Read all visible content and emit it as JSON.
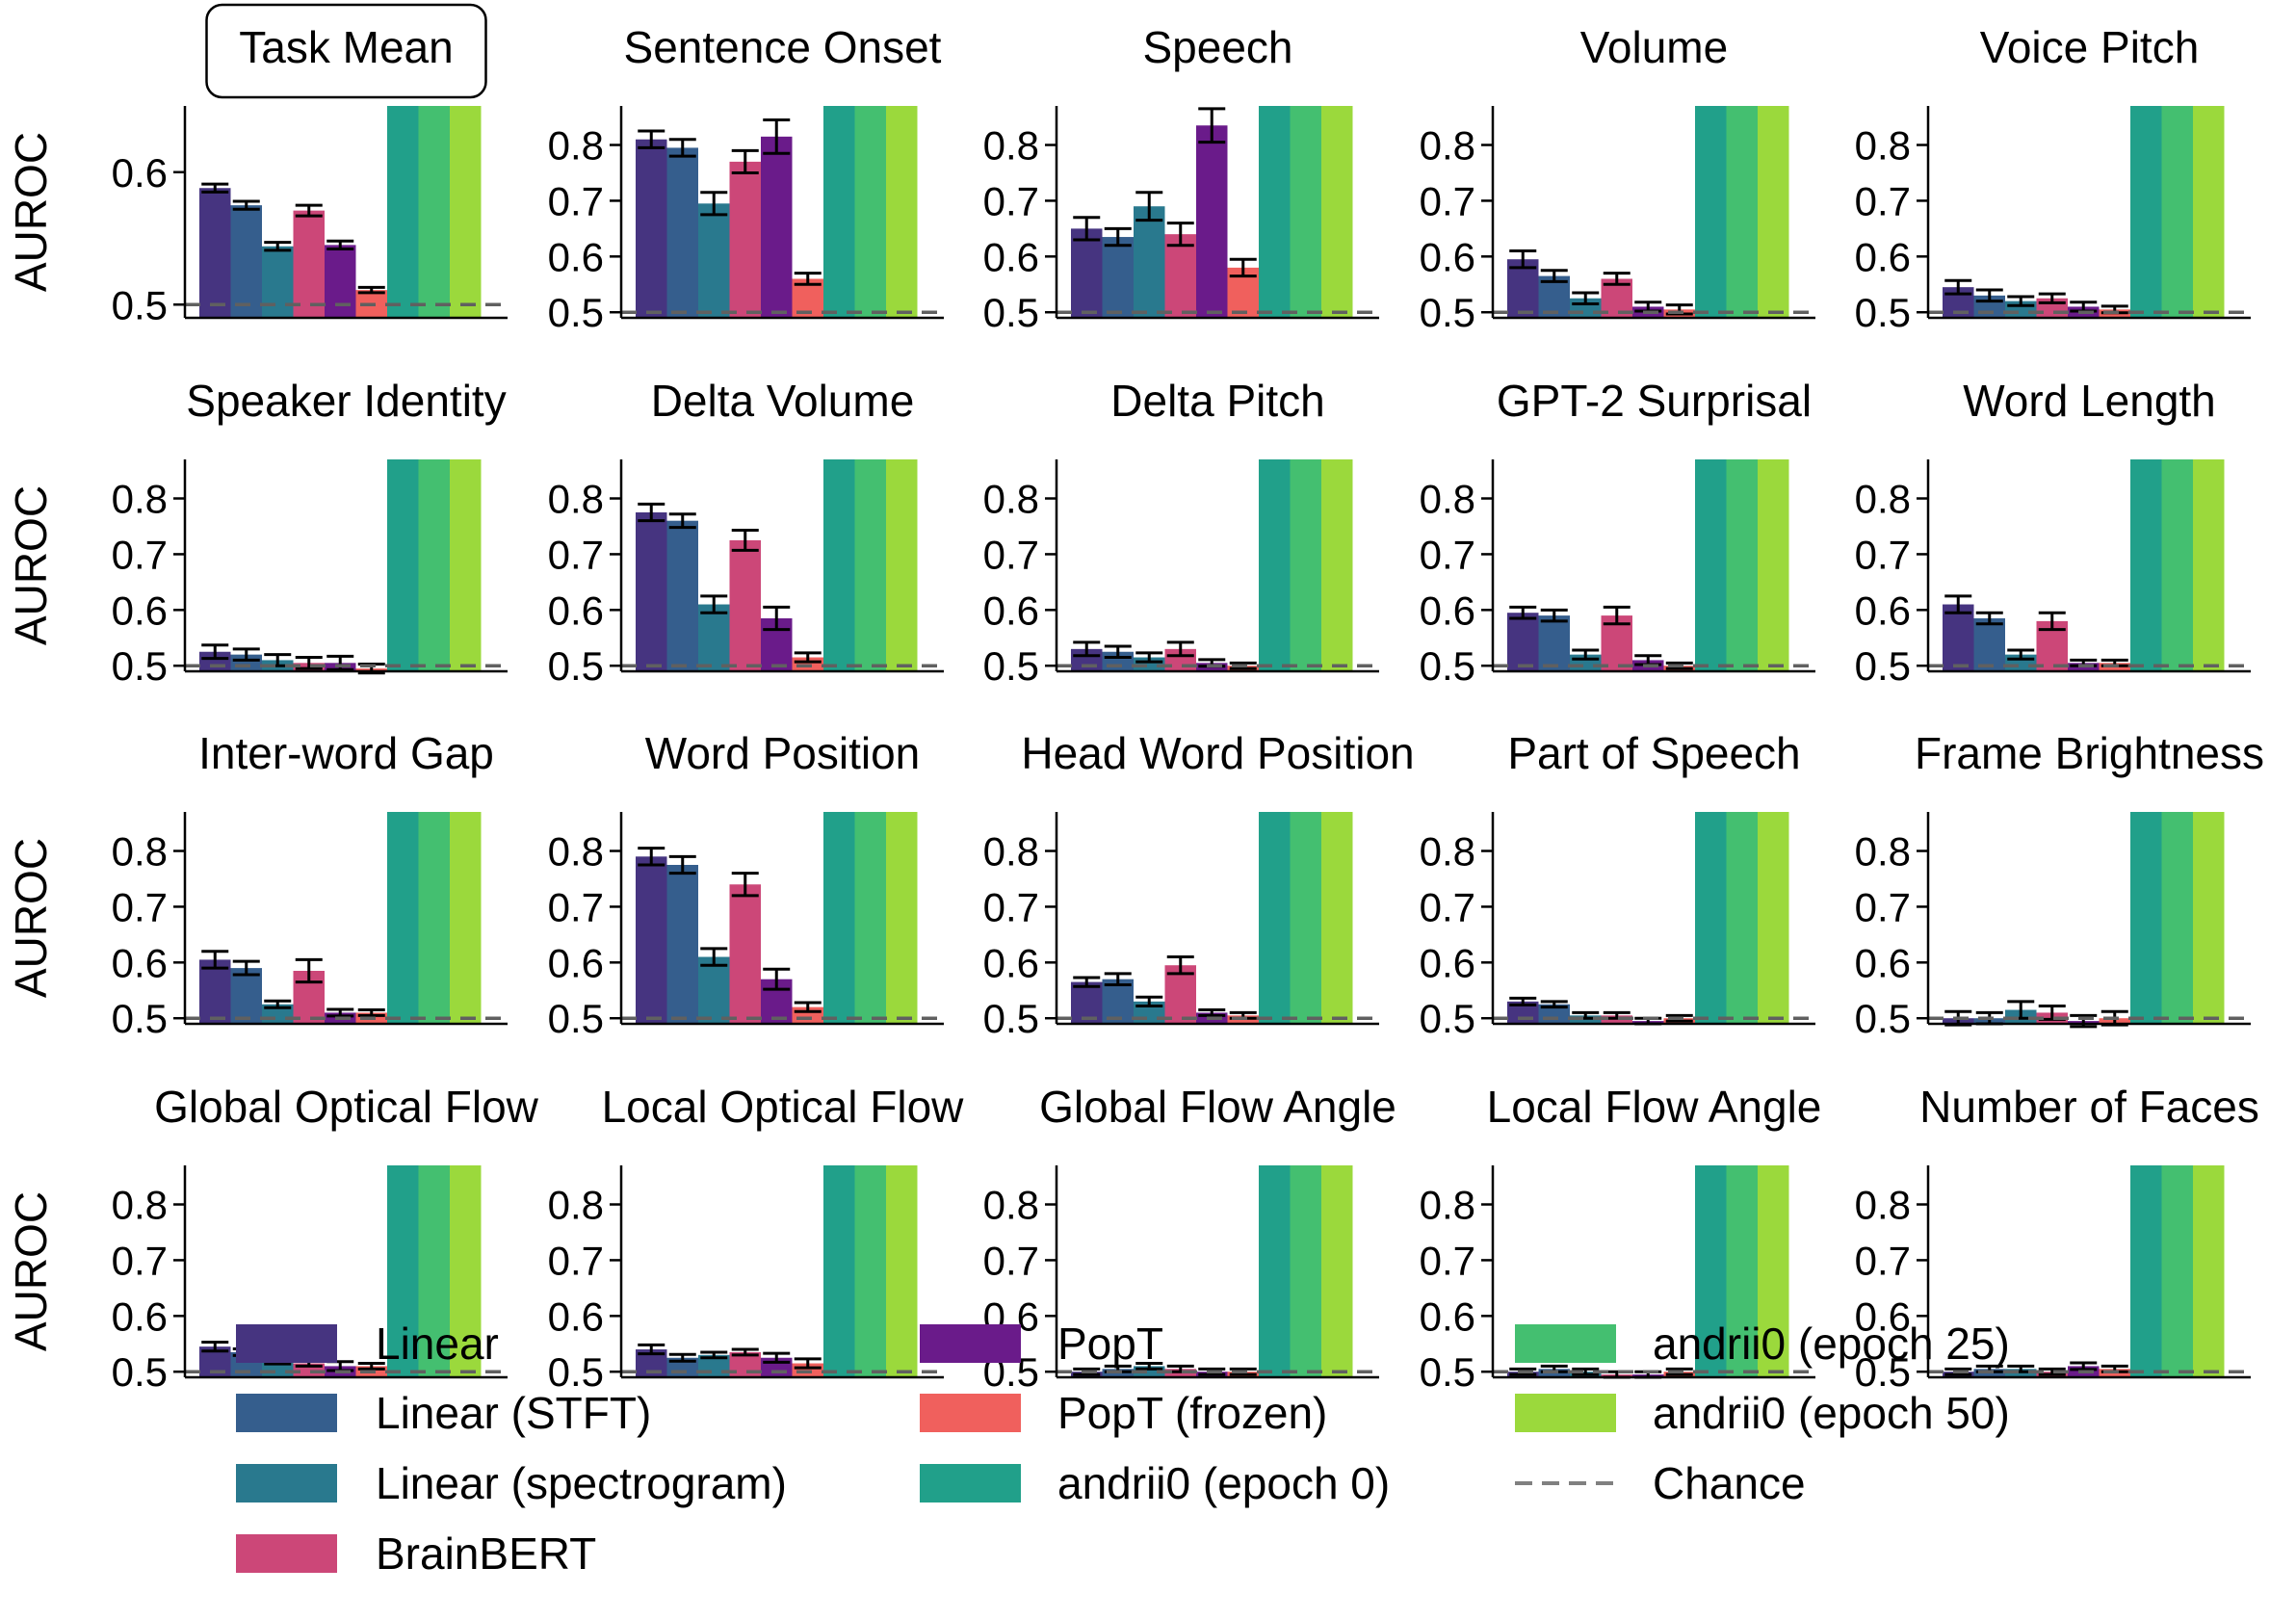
{
  "figure": {
    "ylabel": "AUROC",
    "chance_value": 0.5,
    "highlighted_panel": "Task Mean"
  },
  "legend": {
    "items": [
      {
        "label": "Linear",
        "color": "#463480",
        "kind": "box"
      },
      {
        "label": "Linear (STFT)",
        "color": "#355e8d",
        "kind": "box"
      },
      {
        "label": "Linear (spectrogram)",
        "color": "#29798e",
        "kind": "box"
      },
      {
        "label": "BrainBERT",
        "color": "#cc4778",
        "kind": "box"
      },
      {
        "label": "PopT",
        "color": "#6a1b8a",
        "kind": "box"
      },
      {
        "label": "PopT (frozen)",
        "color": "#f0605d",
        "kind": "box"
      },
      {
        "label": "andrii0 (epoch 0)",
        "color": "#21a08a",
        "kind": "box"
      },
      {
        "label": "andrii0 (epoch 25)",
        "color": "#44bf70",
        "kind": "box"
      },
      {
        "label": "andrii0 (epoch 50)",
        "color": "#9bd93c",
        "kind": "box"
      },
      {
        "label": "Chance",
        "color": "#808080",
        "kind": "dashed"
      }
    ]
  },
  "chart_data": [
    {
      "type": "bar",
      "title": "Task Mean",
      "ylim": [
        0.49,
        0.65
      ],
      "yticks": [
        0.5,
        0.6
      ],
      "series": [
        "Linear",
        "Linear (STFT)",
        "Linear (spectrogram)",
        "BrainBERT",
        "PopT",
        "PopT (frozen)",
        "andrii0 (epoch 0)",
        "andrii0 (epoch 25)",
        "andrii0 (epoch 50)"
      ],
      "values": [
        0.588,
        0.575,
        0.544,
        0.571,
        0.545,
        0.511,
        0.65,
        0.65,
        0.65
      ],
      "errors": [
        0.003,
        0.003,
        0.003,
        0.004,
        0.003,
        0.002,
        0,
        0,
        0
      ]
    },
    {
      "type": "bar",
      "title": "Sentence Onset",
      "ylim": [
        0.49,
        0.87
      ],
      "yticks": [
        0.5,
        0.6,
        0.7,
        0.8
      ],
      "values": [
        0.81,
        0.795,
        0.695,
        0.77,
        0.815,
        0.56,
        0.87,
        0.87,
        0.87
      ],
      "errors": [
        0.015,
        0.015,
        0.02,
        0.02,
        0.03,
        0.01,
        0,
        0,
        0
      ]
    },
    {
      "type": "bar",
      "title": "Speech",
      "ylim": [
        0.49,
        0.87
      ],
      "yticks": [
        0.5,
        0.6,
        0.7,
        0.8
      ],
      "values": [
        0.65,
        0.635,
        0.69,
        0.64,
        0.835,
        0.58,
        0.87,
        0.87,
        0.87
      ],
      "errors": [
        0.02,
        0.015,
        0.025,
        0.02,
        0.03,
        0.015,
        0,
        0,
        0
      ]
    },
    {
      "type": "bar",
      "title": "Volume",
      "ylim": [
        0.49,
        0.87
      ],
      "yticks": [
        0.5,
        0.6,
        0.7,
        0.8
      ],
      "values": [
        0.595,
        0.565,
        0.525,
        0.56,
        0.51,
        0.505,
        0.87,
        0.87,
        0.87
      ],
      "errors": [
        0.015,
        0.01,
        0.01,
        0.01,
        0.008,
        0.008,
        0,
        0,
        0
      ]
    },
    {
      "type": "bar",
      "title": "Voice Pitch",
      "ylim": [
        0.49,
        0.87
      ],
      "yticks": [
        0.5,
        0.6,
        0.7,
        0.8
      ],
      "values": [
        0.545,
        0.53,
        0.52,
        0.525,
        0.51,
        0.505,
        0.87,
        0.87,
        0.87
      ],
      "errors": [
        0.012,
        0.01,
        0.008,
        0.008,
        0.008,
        0.006,
        0,
        0,
        0
      ]
    },
    {
      "type": "bar",
      "title": "Speaker Identity",
      "ylim": [
        0.49,
        0.87
      ],
      "yticks": [
        0.5,
        0.6,
        0.7,
        0.8
      ],
      "values": [
        0.525,
        0.52,
        0.51,
        0.505,
        0.505,
        0.495,
        0.87,
        0.87,
        0.87
      ],
      "errors": [
        0.012,
        0.01,
        0.01,
        0.01,
        0.012,
        0.008,
        0,
        0,
        0
      ]
    },
    {
      "type": "bar",
      "title": "Delta Volume",
      "ylim": [
        0.49,
        0.87
      ],
      "yticks": [
        0.5,
        0.6,
        0.7,
        0.8
      ],
      "values": [
        0.775,
        0.76,
        0.61,
        0.725,
        0.585,
        0.515,
        0.87,
        0.87,
        0.87
      ],
      "errors": [
        0.015,
        0.012,
        0.015,
        0.018,
        0.02,
        0.008,
        0,
        0,
        0
      ]
    },
    {
      "type": "bar",
      "title": "Delta Pitch",
      "ylim": [
        0.49,
        0.87
      ],
      "yticks": [
        0.5,
        0.6,
        0.7,
        0.8
      ],
      "values": [
        0.53,
        0.525,
        0.515,
        0.53,
        0.505,
        0.5,
        0.87,
        0.87,
        0.87
      ],
      "errors": [
        0.012,
        0.01,
        0.008,
        0.012,
        0.006,
        0.005,
        0,
        0,
        0
      ]
    },
    {
      "type": "bar",
      "title": "GPT-2 Surprisal",
      "ylim": [
        0.49,
        0.87
      ],
      "yticks": [
        0.5,
        0.6,
        0.7,
        0.8
      ],
      "values": [
        0.595,
        0.59,
        0.52,
        0.59,
        0.51,
        0.5,
        0.87,
        0.87,
        0.87
      ],
      "errors": [
        0.01,
        0.01,
        0.008,
        0.015,
        0.008,
        0.005,
        0,
        0,
        0
      ]
    },
    {
      "type": "bar",
      "title": "Word Length",
      "ylim": [
        0.49,
        0.87
      ],
      "yticks": [
        0.5,
        0.6,
        0.7,
        0.8
      ],
      "values": [
        0.61,
        0.585,
        0.52,
        0.58,
        0.505,
        0.505,
        0.87,
        0.87,
        0.87
      ],
      "errors": [
        0.015,
        0.01,
        0.008,
        0.015,
        0.005,
        0.005,
        0,
        0,
        0
      ]
    },
    {
      "type": "bar",
      "title": "Inter-word Gap",
      "ylim": [
        0.49,
        0.87
      ],
      "yticks": [
        0.5,
        0.6,
        0.7,
        0.8
      ],
      "values": [
        0.605,
        0.59,
        0.525,
        0.585,
        0.51,
        0.51,
        0.87,
        0.87,
        0.87
      ],
      "errors": [
        0.015,
        0.012,
        0.006,
        0.02,
        0.006,
        0.005,
        0,
        0,
        0
      ]
    },
    {
      "type": "bar",
      "title": "Word Position",
      "ylim": [
        0.49,
        0.87
      ],
      "yticks": [
        0.5,
        0.6,
        0.7,
        0.8
      ],
      "values": [
        0.79,
        0.775,
        0.61,
        0.74,
        0.57,
        0.52,
        0.87,
        0.87,
        0.87
      ],
      "errors": [
        0.015,
        0.015,
        0.015,
        0.02,
        0.018,
        0.008,
        0,
        0,
        0
      ]
    },
    {
      "type": "bar",
      "title": "Head Word Position",
      "ylim": [
        0.49,
        0.87
      ],
      "yticks": [
        0.5,
        0.6,
        0.7,
        0.8
      ],
      "values": [
        0.565,
        0.57,
        0.53,
        0.595,
        0.51,
        0.505,
        0.87,
        0.87,
        0.87
      ],
      "errors": [
        0.008,
        0.01,
        0.008,
        0.015,
        0.005,
        0.005,
        0,
        0,
        0
      ]
    },
    {
      "type": "bar",
      "title": "Part of Speech",
      "ylim": [
        0.49,
        0.87
      ],
      "yticks": [
        0.5,
        0.6,
        0.7,
        0.8
      ],
      "values": [
        0.53,
        0.525,
        0.505,
        0.505,
        0.495,
        0.5,
        0.87,
        0.87,
        0.87
      ],
      "errors": [
        0.006,
        0.005,
        0.005,
        0.005,
        0.005,
        0.005,
        0,
        0,
        0
      ]
    },
    {
      "type": "bar",
      "title": "Frame Brightness",
      "ylim": [
        0.49,
        0.87
      ],
      "yticks": [
        0.5,
        0.6,
        0.7,
        0.8
      ],
      "values": [
        0.5,
        0.5,
        0.515,
        0.51,
        0.495,
        0.5,
        0.87,
        0.87,
        0.87
      ],
      "errors": [
        0.012,
        0.01,
        0.015,
        0.012,
        0.01,
        0.012,
        0,
        0,
        0
      ]
    },
    {
      "type": "bar",
      "title": "Global Optical Flow",
      "ylim": [
        0.49,
        0.87
      ],
      "yticks": [
        0.5,
        0.6,
        0.7,
        0.8
      ],
      "values": [
        0.545,
        0.535,
        0.52,
        0.515,
        0.51,
        0.51,
        0.87,
        0.87,
        0.87
      ],
      "errors": [
        0.008,
        0.006,
        0.006,
        0.005,
        0.008,
        0.005,
        0,
        0,
        0
      ]
    },
    {
      "type": "bar",
      "title": "Local Optical Flow",
      "ylim": [
        0.49,
        0.87
      ],
      "yticks": [
        0.5,
        0.6,
        0.7,
        0.8
      ],
      "values": [
        0.54,
        0.525,
        0.53,
        0.535,
        0.525,
        0.515,
        0.87,
        0.87,
        0.87
      ],
      "errors": [
        0.008,
        0.006,
        0.005,
        0.005,
        0.008,
        0.008,
        0,
        0,
        0
      ]
    },
    {
      "type": "bar",
      "title": "Global Flow Angle",
      "ylim": [
        0.49,
        0.87
      ],
      "yticks": [
        0.5,
        0.6,
        0.7,
        0.8
      ],
      "values": [
        0.5,
        0.505,
        0.51,
        0.505,
        0.5,
        0.5,
        0.87,
        0.87,
        0.87
      ],
      "errors": [
        0.005,
        0.005,
        0.005,
        0.005,
        0.005,
        0.005,
        0,
        0,
        0
      ]
    },
    {
      "type": "bar",
      "title": "Local Flow Angle",
      "ylim": [
        0.49,
        0.87
      ],
      "yticks": [
        0.5,
        0.6,
        0.7,
        0.8
      ],
      "values": [
        0.5,
        0.505,
        0.5,
        0.495,
        0.495,
        0.5,
        0.87,
        0.87,
        0.87
      ],
      "errors": [
        0.005,
        0.005,
        0.005,
        0.005,
        0.005,
        0.005,
        0,
        0,
        0
      ]
    },
    {
      "type": "bar",
      "title": "Number of Faces",
      "ylim": [
        0.49,
        0.87
      ],
      "yticks": [
        0.5,
        0.6,
        0.7,
        0.8
      ],
      "values": [
        0.5,
        0.505,
        0.505,
        0.5,
        0.51,
        0.505,
        0.87,
        0.87,
        0.87
      ],
      "errors": [
        0.005,
        0.005,
        0.005,
        0.005,
        0.006,
        0.005,
        0,
        0,
        0
      ]
    }
  ]
}
